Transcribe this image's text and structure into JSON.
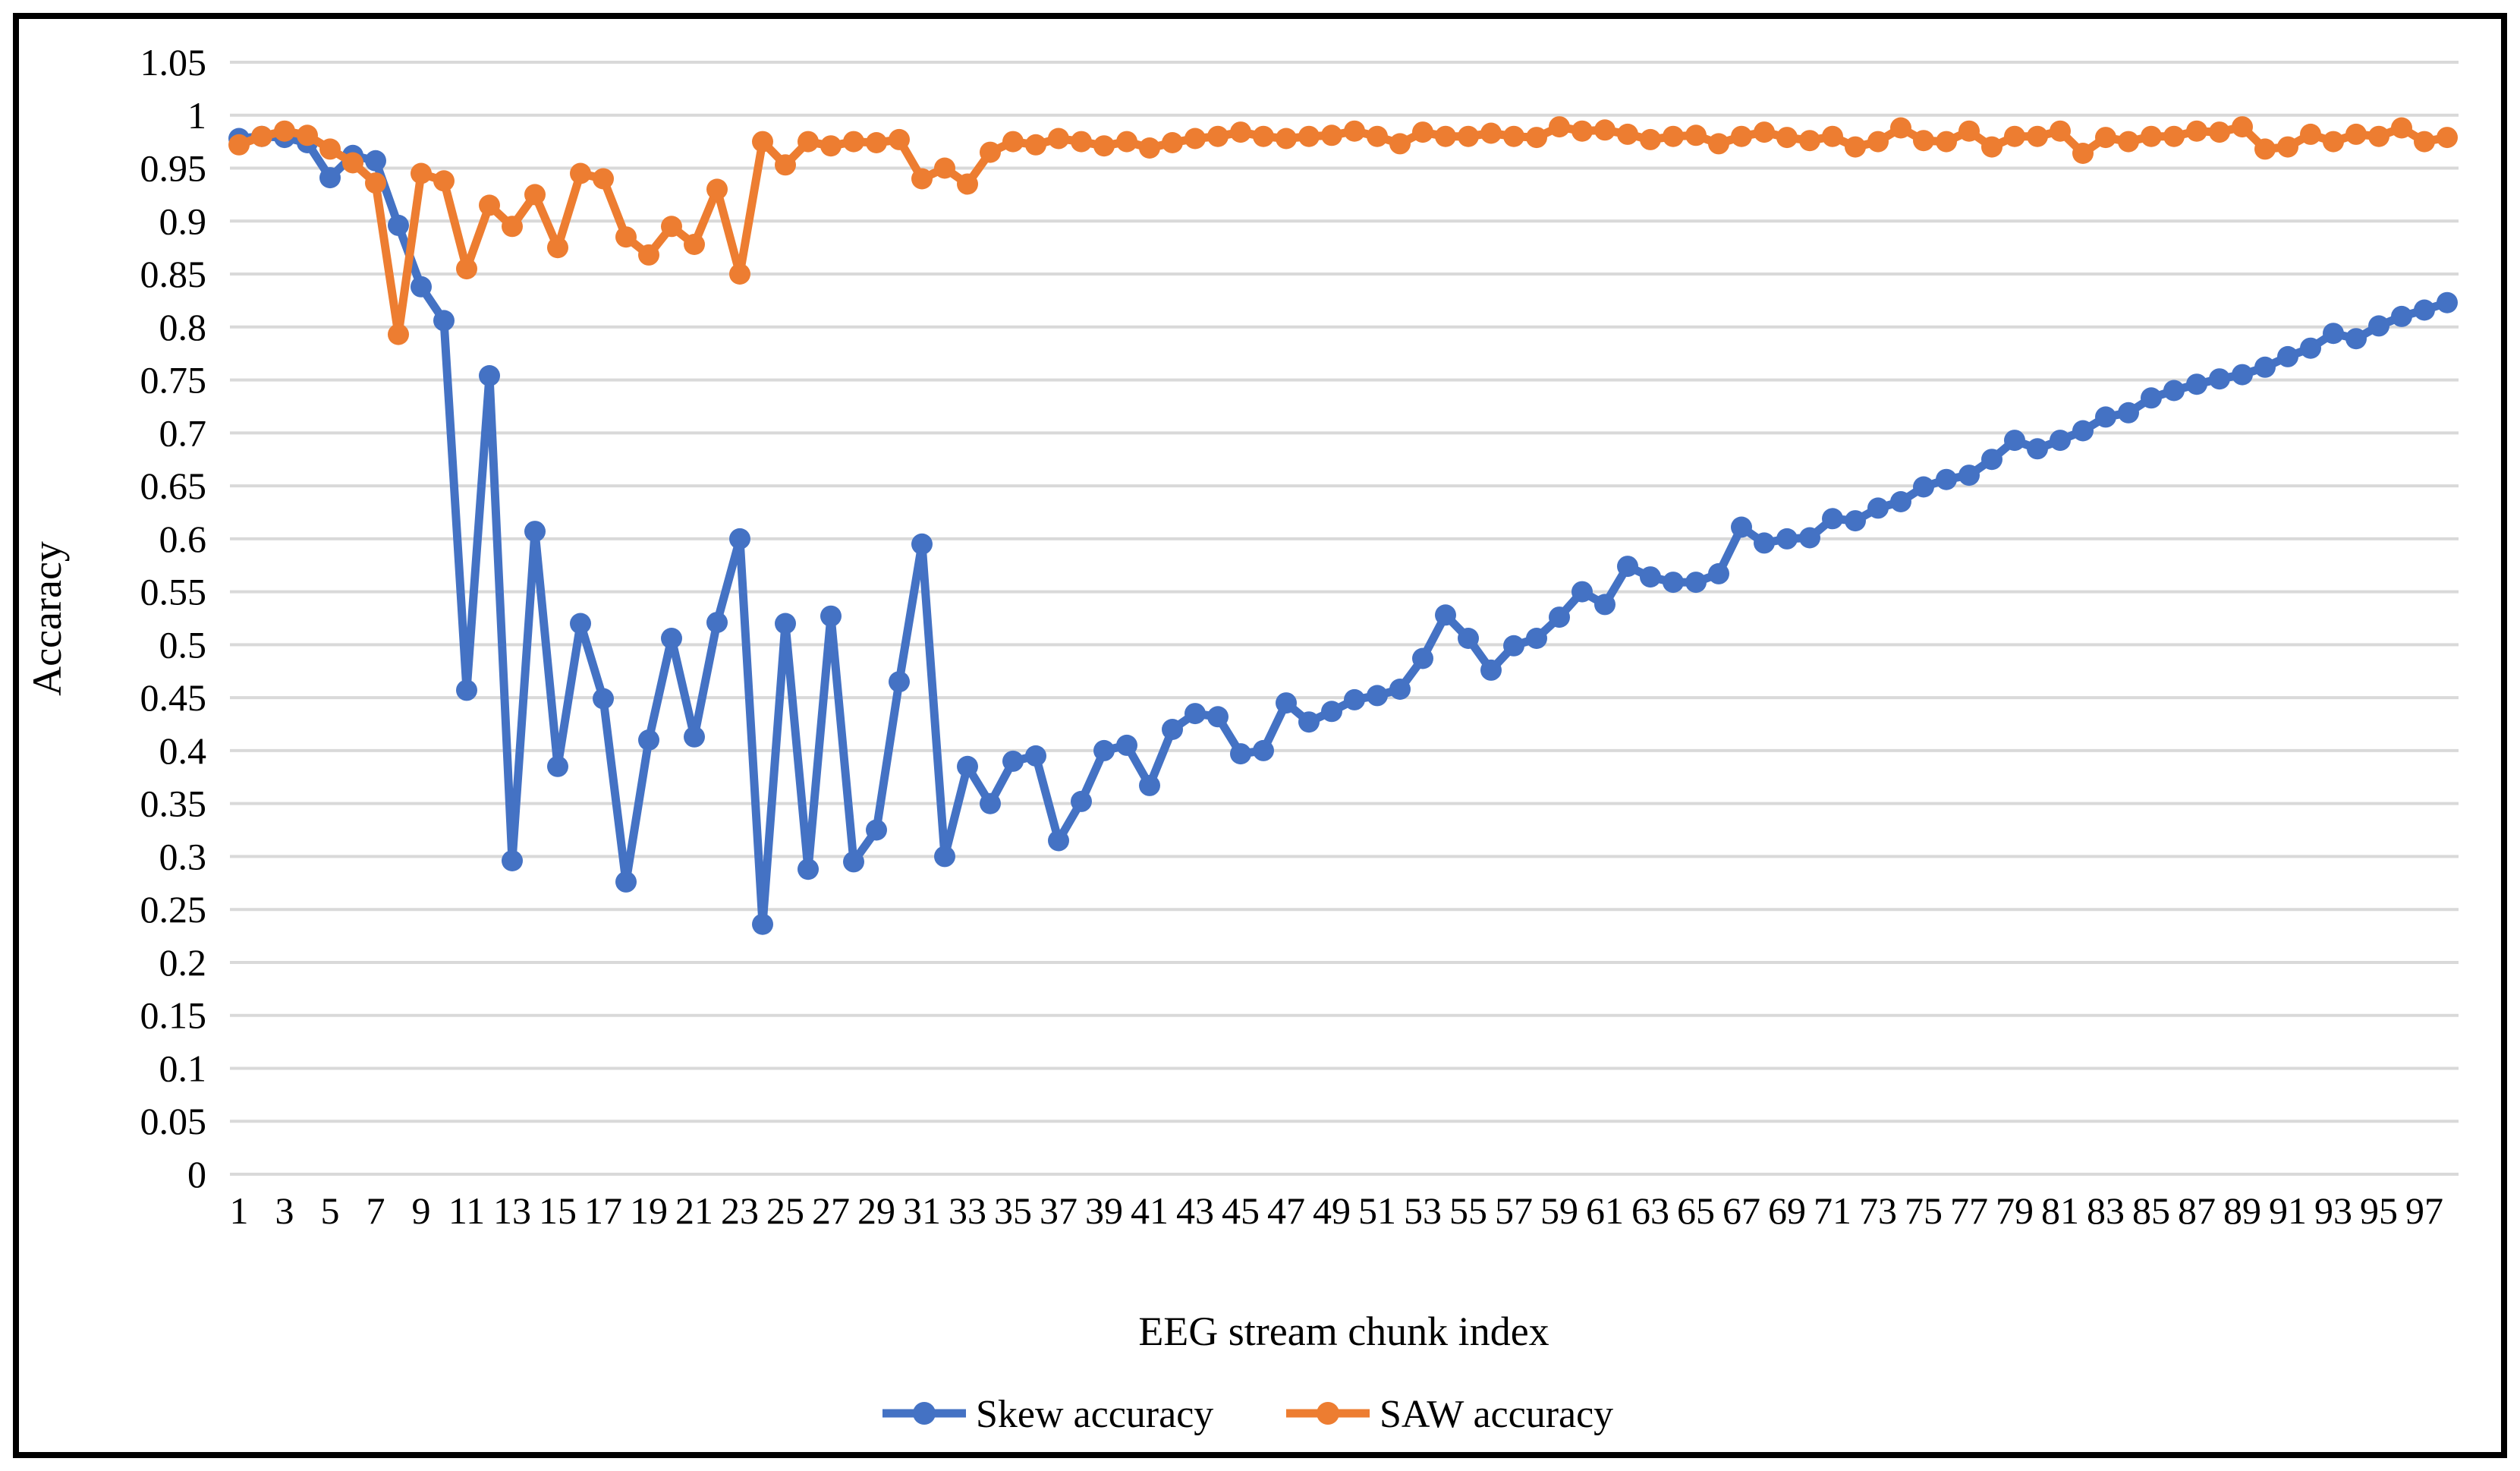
{
  "figure": {
    "background": "#FFFFFF",
    "border_color": "#000000"
  },
  "chart_data": {
    "type": "line",
    "title": "",
    "xlabel": "EEG stream chunk index",
    "ylabel": "Accaracy",
    "ylim": [
      0,
      1.05
    ],
    "ytick_step": 0.05,
    "grid": true,
    "gridline_color": "#D9D9D9",
    "legend_position": "bottom",
    "x": [
      1,
      2,
      3,
      4,
      5,
      6,
      7,
      8,
      9,
      10,
      11,
      12,
      13,
      14,
      15,
      16,
      17,
      18,
      19,
      20,
      21,
      22,
      23,
      24,
      25,
      26,
      27,
      28,
      29,
      30,
      31,
      32,
      33,
      34,
      35,
      36,
      37,
      38,
      39,
      40,
      41,
      42,
      43,
      44,
      45,
      46,
      47,
      48,
      49,
      50,
      51,
      52,
      53,
      54,
      55,
      56,
      57,
      58,
      59,
      60,
      61,
      62,
      63,
      64,
      65,
      66,
      67,
      68,
      69,
      70,
      71,
      72,
      73,
      74,
      75,
      76,
      77,
      78,
      79,
      80,
      81,
      82,
      83,
      84,
      85,
      86,
      87,
      88,
      89,
      90,
      91,
      92,
      93,
      94,
      95,
      96,
      97,
      98
    ],
    "xtick_labels": [
      1,
      3,
      5,
      7,
      9,
      11,
      13,
      15,
      17,
      19,
      21,
      23,
      25,
      27,
      29,
      31,
      33,
      35,
      37,
      39,
      41,
      43,
      45,
      47,
      49,
      51,
      53,
      55,
      57,
      59,
      61,
      63,
      65,
      67,
      69,
      71,
      73,
      75,
      77,
      79,
      81,
      83,
      85,
      87,
      89,
      91,
      93,
      95,
      97
    ],
    "series": [
      {
        "name": "Skew accuracy",
        "color": "#4472C4",
        "values": [
          0.978,
          0.98,
          0.979,
          0.974,
          0.941,
          0.962,
          0.957,
          0.896,
          0.838,
          0.806,
          0.457,
          0.754,
          0.296,
          0.607,
          0.385,
          0.52,
          0.449,
          0.276,
          0.41,
          0.506,
          0.413,
          0.521,
          0.6,
          0.236,
          0.52,
          0.288,
          0.527,
          0.295,
          0.325,
          0.465,
          0.595,
          0.3,
          0.385,
          0.35,
          0.39,
          0.395,
          0.315,
          0.352,
          0.4,
          0.405,
          0.367,
          0.42,
          0.435,
          0.432,
          0.397,
          0.4,
          0.445,
          0.427,
          0.437,
          0.448,
          0.452,
          0.458,
          0.487,
          0.528,
          0.506,
          0.476,
          0.499,
          0.506,
          0.526,
          0.55,
          0.538,
          0.574,
          0.564,
          0.559,
          0.559,
          0.567,
          0.611,
          0.596,
          0.6,
          0.601,
          0.619,
          0.617,
          0.629,
          0.635,
          0.649,
          0.656,
          0.66,
          0.675,
          0.693,
          0.685,
          0.693,
          0.702,
          0.715,
          0.719,
          0.733,
          0.74,
          0.746,
          0.751,
          0.755,
          0.762,
          0.772,
          0.78,
          0.794,
          0.789,
          0.801,
          0.81,
          0.816,
          0.823
        ]
      },
      {
        "name": "SAW accuracy",
        "color": "#ED7D31",
        "values": [
          0.972,
          0.98,
          0.985,
          0.981,
          0.968,
          0.955,
          0.936,
          0.793,
          0.945,
          0.938,
          0.855,
          0.915,
          0.895,
          0.925,
          0.875,
          0.945,
          0.94,
          0.885,
          0.868,
          0.895,
          0.878,
          0.93,
          0.85,
          0.975,
          0.953,
          0.975,
          0.971,
          0.975,
          0.974,
          0.977,
          0.94,
          0.95,
          0.935,
          0.965,
          0.975,
          0.972,
          0.978,
          0.975,
          0.971,
          0.975,
          0.969,
          0.974,
          0.978,
          0.98,
          0.984,
          0.98,
          0.978,
          0.98,
          0.981,
          0.985,
          0.98,
          0.973,
          0.984,
          0.98,
          0.98,
          0.983,
          0.98,
          0.979,
          0.989,
          0.985,
          0.986,
          0.982,
          0.977,
          0.98,
          0.981,
          0.973,
          0.98,
          0.984,
          0.979,
          0.976,
          0.98,
          0.97,
          0.975,
          0.988,
          0.976,
          0.975,
          0.985,
          0.97,
          0.98,
          0.98,
          0.985,
          0.964,
          0.979,
          0.975,
          0.98,
          0.98,
          0.985,
          0.984,
          0.989,
          0.968,
          0.97,
          0.982,
          0.975,
          0.982,
          0.98,
          0.988,
          0.975,
          0.979
        ]
      }
    ]
  }
}
